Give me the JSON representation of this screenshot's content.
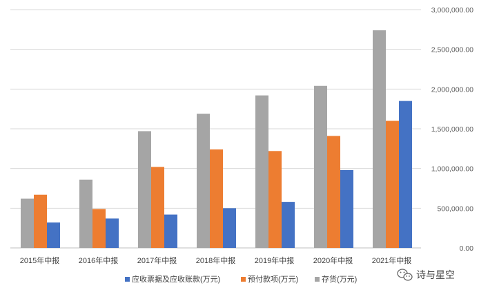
{
  "chart_data": {
    "type": "bar",
    "categories": [
      "2015年中报",
      "2016年中报",
      "2017年中报",
      "2018年中报",
      "2019年中报",
      "2020年中报",
      "2021年中报"
    ],
    "series": [
      {
        "name": "存货(万元)",
        "color": "#a5a5a5",
        "values": [
          620000,
          860000,
          1470000,
          1690000,
          1920000,
          2040000,
          2740000
        ]
      },
      {
        "name": "预付款项(万元)",
        "color": "#ed7d31",
        "values": [
          670000,
          490000,
          1020000,
          1240000,
          1220000,
          1410000,
          1600000
        ]
      },
      {
        "name": "应收票据及应收账款(万元)",
        "color": "#4472c4",
        "values": [
          320000,
          370000,
          420000,
          500000,
          580000,
          980000,
          1850000
        ]
      }
    ],
    "legend_order": [
      2,
      1,
      0
    ],
    "ylim": [
      0,
      3000000
    ],
    "y_ticks": [
      "0.00",
      "500,000.00",
      "1,000,000.00",
      "1,500,000.00",
      "2,000,000.00",
      "2,500,000.00",
      "3,000,000.00"
    ],
    "y_tick_values": [
      0,
      500000,
      1000000,
      1500000,
      2000000,
      2500000,
      3000000
    ],
    "y_axis_side": "right",
    "grid": true,
    "legend_position": "bottom"
  },
  "watermark": {
    "text": "诗与星空",
    "icon": "wechat-icon"
  }
}
